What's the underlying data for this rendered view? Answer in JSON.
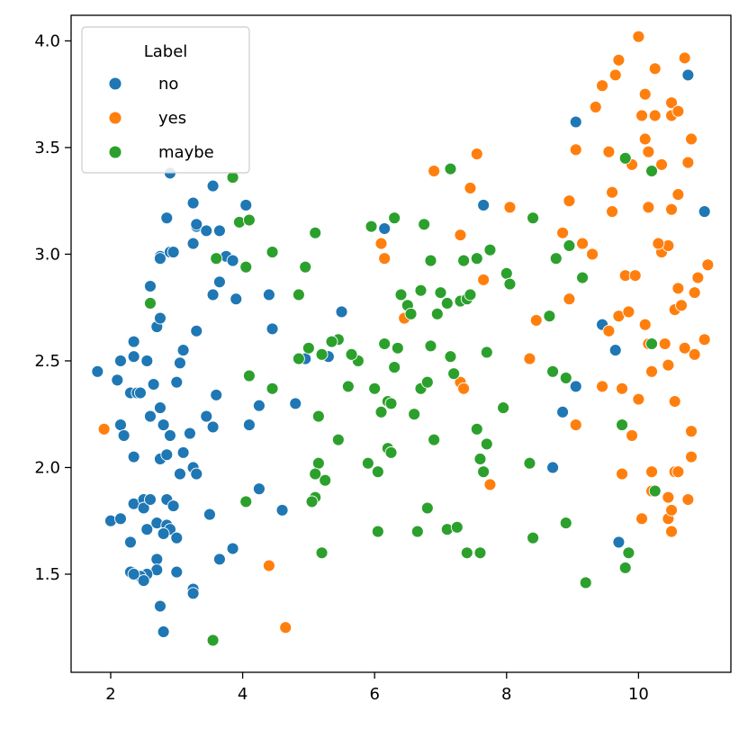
{
  "chart_data": {
    "type": "scatter",
    "title": "",
    "xlabel": "",
    "ylabel": "",
    "xlim": [
      1.4,
      11.4
    ],
    "ylim": [
      1.04,
      4.12
    ],
    "xticks": [
      2,
      4,
      6,
      8,
      10
    ],
    "yticks": [
      1.5,
      2.0,
      2.5,
      3.0,
      3.5,
      4.0
    ],
    "xtick_labels": [
      "2",
      "4",
      "6",
      "8",
      "10"
    ],
    "ytick_labels": [
      "1.5",
      "2.0",
      "2.5",
      "3.0",
      "3.5",
      "4.0"
    ],
    "grid": false,
    "legend": {
      "title": "Label",
      "placement": "top-left"
    },
    "series": [
      {
        "name": "no",
        "color": "#1f77b4",
        "points": [
          [
            1.8,
            2.45
          ],
          [
            2.1,
            2.41
          ],
          [
            2.15,
            2.5
          ],
          [
            2.15,
            2.2
          ],
          [
            2.2,
            2.15
          ],
          [
            2.35,
            2.59
          ],
          [
            2.35,
            2.52
          ],
          [
            2.3,
            2.35
          ],
          [
            2.4,
            2.35
          ],
          [
            2.45,
            2.35
          ],
          [
            2.55,
            2.5
          ],
          [
            2.35,
            2.05
          ],
          [
            2.6,
            2.85
          ],
          [
            2.75,
            2.99
          ],
          [
            2.75,
            2.98
          ],
          [
            2.9,
            3.01
          ],
          [
            2.95,
            3.01
          ],
          [
            2.85,
            3.17
          ],
          [
            2.9,
            3.38
          ],
          [
            2.7,
            2.66
          ],
          [
            2.75,
            2.7
          ],
          [
            2.65,
            2.39
          ],
          [
            2.6,
            2.24
          ],
          [
            2.75,
            2.28
          ],
          [
            2.8,
            2.2
          ],
          [
            2.9,
            2.15
          ],
          [
            2.75,
            2.04
          ],
          [
            2.85,
            2.06
          ],
          [
            3.0,
            2.4
          ],
          [
            3.05,
            2.49
          ],
          [
            3.1,
            2.55
          ],
          [
            3.3,
            2.64
          ],
          [
            3.25,
            3.05
          ],
          [
            3.3,
            3.13
          ],
          [
            3.25,
            3.24
          ],
          [
            3.3,
            3.14
          ],
          [
            3.45,
            3.11
          ],
          [
            3.55,
            3.32
          ],
          [
            3.65,
            3.11
          ],
          [
            3.75,
            2.99
          ],
          [
            3.85,
            2.97
          ],
          [
            3.9,
            2.79
          ],
          [
            3.55,
            2.81
          ],
          [
            3.65,
            2.87
          ],
          [
            3.05,
            1.97
          ],
          [
            3.1,
            2.07
          ],
          [
            3.2,
            2.16
          ],
          [
            3.25,
            2.0
          ],
          [
            3.3,
            1.97
          ],
          [
            3.45,
            2.24
          ],
          [
            3.55,
            2.19
          ],
          [
            3.6,
            2.34
          ],
          [
            4.05,
            3.23
          ],
          [
            4.4,
            2.81
          ],
          [
            4.45,
            2.65
          ],
          [
            4.25,
            2.29
          ],
          [
            4.1,
            2.2
          ],
          [
            2.0,
            1.75
          ],
          [
            2.15,
            1.76
          ],
          [
            2.3,
            1.65
          ],
          [
            2.35,
            1.83
          ],
          [
            2.5,
            1.85
          ],
          [
            2.5,
            1.81
          ],
          [
            2.55,
            1.71
          ],
          [
            2.6,
            1.85
          ],
          [
            2.7,
            1.74
          ],
          [
            2.85,
            1.73
          ],
          [
            2.85,
            1.85
          ],
          [
            2.95,
            1.82
          ],
          [
            2.9,
            1.71
          ],
          [
            2.8,
            1.69
          ],
          [
            3.0,
            1.67
          ],
          [
            2.7,
            1.57
          ],
          [
            2.7,
            1.52
          ],
          [
            2.55,
            1.5
          ],
          [
            2.45,
            1.49
          ],
          [
            2.3,
            1.51
          ],
          [
            2.35,
            1.5
          ],
          [
            2.5,
            1.47
          ],
          [
            3.0,
            1.51
          ],
          [
            3.25,
            1.43
          ],
          [
            3.25,
            1.41
          ],
          [
            2.75,
            1.35
          ],
          [
            2.8,
            1.23
          ],
          [
            3.5,
            1.78
          ],
          [
            3.65,
            1.57
          ],
          [
            3.85,
            1.62
          ],
          [
            4.25,
            1.9
          ],
          [
            4.6,
            1.8
          ],
          [
            4.8,
            2.3
          ],
          [
            4.95,
            2.51
          ],
          [
            5.3,
            2.52
          ],
          [
            5.5,
            2.73
          ],
          [
            6.15,
            3.12
          ],
          [
            7.65,
            3.23
          ],
          [
            8.85,
            2.26
          ],
          [
            8.7,
            2.0
          ],
          [
            9.05,
            2.38
          ],
          [
            9.05,
            3.62
          ],
          [
            9.45,
            2.67
          ],
          [
            9.65,
            2.55
          ],
          [
            9.7,
            1.65
          ],
          [
            10.75,
            3.84
          ],
          [
            11.0,
            3.2
          ]
        ]
      },
      {
        "name": "yes",
        "color": "#ff7f0e",
        "points": [
          [
            1.9,
            2.18
          ],
          [
            4.4,
            1.54
          ],
          [
            4.65,
            1.25
          ],
          [
            6.1,
            3.05
          ],
          [
            6.15,
            2.98
          ],
          [
            6.45,
            2.7
          ],
          [
            6.9,
            3.39
          ],
          [
            7.3,
            3.09
          ],
          [
            7.3,
            2.4
          ],
          [
            7.35,
            2.37
          ],
          [
            7.45,
            3.31
          ],
          [
            7.55,
            3.47
          ],
          [
            7.65,
            2.88
          ],
          [
            7.75,
            1.92
          ],
          [
            8.05,
            3.22
          ],
          [
            8.35,
            2.51
          ],
          [
            8.45,
            2.69
          ],
          [
            8.85,
            3.1
          ],
          [
            8.95,
            3.25
          ],
          [
            8.95,
            2.79
          ],
          [
            9.05,
            3.49
          ],
          [
            9.15,
            3.05
          ],
          [
            9.05,
            2.2
          ],
          [
            9.3,
            3.0
          ],
          [
            9.35,
            3.69
          ],
          [
            9.45,
            3.79
          ],
          [
            9.45,
            2.38
          ],
          [
            9.55,
            3.48
          ],
          [
            9.55,
            2.64
          ],
          [
            9.6,
            3.29
          ],
          [
            9.6,
            3.2
          ],
          [
            9.65,
            3.84
          ],
          [
            9.7,
            3.91
          ],
          [
            9.7,
            2.71
          ],
          [
            9.75,
            2.37
          ],
          [
            9.75,
            1.97
          ],
          [
            9.8,
            2.9
          ],
          [
            9.85,
            2.73
          ],
          [
            9.9,
            3.42
          ],
          [
            9.95,
            2.9
          ],
          [
            10.0,
            2.32
          ],
          [
            10.0,
            4.02
          ],
          [
            10.05,
            3.65
          ],
          [
            10.05,
            1.76
          ],
          [
            10.1,
            3.75
          ],
          [
            10.1,
            3.54
          ],
          [
            10.15,
            3.48
          ],
          [
            10.15,
            3.22
          ],
          [
            10.1,
            2.67
          ],
          [
            10.15,
            2.58
          ],
          [
            10.2,
            2.45
          ],
          [
            10.2,
            1.98
          ],
          [
            10.2,
            1.89
          ],
          [
            10.25,
            3.87
          ],
          [
            10.25,
            3.65
          ],
          [
            10.35,
            3.42
          ],
          [
            10.35,
            3.01
          ],
          [
            10.4,
            2.58
          ],
          [
            10.45,
            3.04
          ],
          [
            10.45,
            2.48
          ],
          [
            10.45,
            1.76
          ],
          [
            10.45,
            1.86
          ],
          [
            10.5,
            3.71
          ],
          [
            10.5,
            3.65
          ],
          [
            10.5,
            3.21
          ],
          [
            10.55,
            2.74
          ],
          [
            10.55,
            2.31
          ],
          [
            10.55,
            1.98
          ],
          [
            10.6,
            3.67
          ],
          [
            10.6,
            3.28
          ],
          [
            10.6,
            2.84
          ],
          [
            10.6,
            1.98
          ],
          [
            10.7,
            3.92
          ],
          [
            10.7,
            2.56
          ],
          [
            10.75,
            3.43
          ],
          [
            10.75,
            1.85
          ],
          [
            10.8,
            3.54
          ],
          [
            10.8,
            2.17
          ],
          [
            10.8,
            2.05
          ],
          [
            10.85,
            2.82
          ],
          [
            10.85,
            2.53
          ],
          [
            10.9,
            2.89
          ],
          [
            11.0,
            2.6
          ],
          [
            11.05,
            2.95
          ],
          [
            10.15,
            2.58
          ],
          [
            10.5,
            1.7
          ],
          [
            10.3,
            3.05
          ],
          [
            9.9,
            2.15
          ],
          [
            10.5,
            1.8
          ],
          [
            10.65,
            2.76
          ]
        ]
      },
      {
        "name": "maybe",
        "color": "#2ca02c",
        "points": [
          [
            2.6,
            2.77
          ],
          [
            3.6,
            2.98
          ],
          [
            3.85,
            3.36
          ],
          [
            3.95,
            3.15
          ],
          [
            4.1,
            3.16
          ],
          [
            4.05,
            2.94
          ],
          [
            4.1,
            2.43
          ],
          [
            4.45,
            3.01
          ],
          [
            4.45,
            2.37
          ],
          [
            4.05,
            1.84
          ],
          [
            3.55,
            1.19
          ],
          [
            4.85,
            2.81
          ],
          [
            4.95,
            2.94
          ],
          [
            5.0,
            2.56
          ],
          [
            5.1,
            3.1
          ],
          [
            5.15,
            2.24
          ],
          [
            5.2,
            2.53
          ],
          [
            5.25,
            1.94
          ],
          [
            5.45,
            2.6
          ],
          [
            5.45,
            2.13
          ],
          [
            5.6,
            2.38
          ],
          [
            5.75,
            2.5
          ],
          [
            5.9,
            2.02
          ],
          [
            5.95,
            3.13
          ],
          [
            6.05,
            1.98
          ],
          [
            6.05,
            1.7
          ],
          [
            6.1,
            2.26
          ],
          [
            6.15,
            2.58
          ],
          [
            6.2,
            2.09
          ],
          [
            6.2,
            2.31
          ],
          [
            6.25,
            2.07
          ],
          [
            6.25,
            2.3
          ],
          [
            6.3,
            3.17
          ],
          [
            6.3,
            2.47
          ],
          [
            6.35,
            2.56
          ],
          [
            6.4,
            2.81
          ],
          [
            6.5,
            2.76
          ],
          [
            6.55,
            2.72
          ],
          [
            6.6,
            2.25
          ],
          [
            6.65,
            1.7
          ],
          [
            6.7,
            2.83
          ],
          [
            6.7,
            2.37
          ],
          [
            6.75,
            3.14
          ],
          [
            6.8,
            2.4
          ],
          [
            6.8,
            1.81
          ],
          [
            6.85,
            2.57
          ],
          [
            6.85,
            2.97
          ],
          [
            6.9,
            2.13
          ],
          [
            6.95,
            2.72
          ],
          [
            7.0,
            2.82
          ],
          [
            7.1,
            1.71
          ],
          [
            7.1,
            2.77
          ],
          [
            7.15,
            2.52
          ],
          [
            7.15,
            3.4
          ],
          [
            7.2,
            2.44
          ],
          [
            7.25,
            1.72
          ],
          [
            7.3,
            2.78
          ],
          [
            7.35,
            2.97
          ],
          [
            7.4,
            2.79
          ],
          [
            7.4,
            1.6
          ],
          [
            7.45,
            2.81
          ],
          [
            7.55,
            2.98
          ],
          [
            7.6,
            1.6
          ],
          [
            7.6,
            2.04
          ],
          [
            7.65,
            1.98
          ],
          [
            7.7,
            2.54
          ],
          [
            7.7,
            2.11
          ],
          [
            7.75,
            3.02
          ],
          [
            7.55,
            2.18
          ],
          [
            7.95,
            2.28
          ],
          [
            8.0,
            2.91
          ],
          [
            8.05,
            2.86
          ],
          [
            8.35,
            2.02
          ],
          [
            8.4,
            1.67
          ],
          [
            8.4,
            3.17
          ],
          [
            8.65,
            2.71
          ],
          [
            8.7,
            2.45
          ],
          [
            8.75,
            2.98
          ],
          [
            8.9,
            2.42
          ],
          [
            8.9,
            1.74
          ],
          [
            8.95,
            3.04
          ],
          [
            9.15,
            2.89
          ],
          [
            9.2,
            1.46
          ],
          [
            9.75,
            2.2
          ],
          [
            9.8,
            1.53
          ],
          [
            9.85,
            1.6
          ],
          [
            9.8,
            3.45
          ],
          [
            10.2,
            3.39
          ],
          [
            10.2,
            2.58
          ],
          [
            10.25,
            1.89
          ],
          [
            5.1,
            1.86
          ],
          [
            5.2,
            1.6
          ],
          [
            5.15,
            2.02
          ],
          [
            5.05,
            1.84
          ],
          [
            5.1,
            1.97
          ],
          [
            5.35,
            2.59
          ],
          [
            4.85,
            2.51
          ],
          [
            5.65,
            2.53
          ],
          [
            6.0,
            2.37
          ]
        ]
      }
    ]
  }
}
